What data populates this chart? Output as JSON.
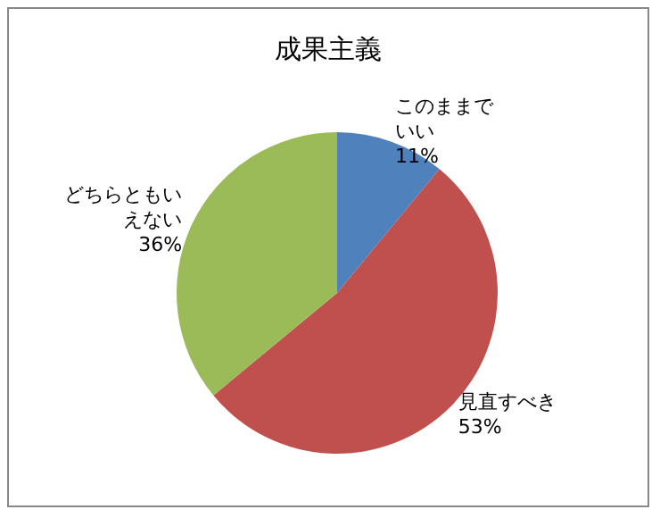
{
  "chart_data": {
    "type": "pie",
    "title": "成果主義",
    "categories": [
      "このままでいい",
      "見直すべき",
      "どちらともいえない"
    ],
    "values": [
      11,
      53,
      36
    ],
    "colors": [
      "#4f81bd",
      "#c0504d",
      "#9bbb59"
    ],
    "value_labels": [
      "11%",
      "53%",
      "36%"
    ],
    "legend": false
  }
}
